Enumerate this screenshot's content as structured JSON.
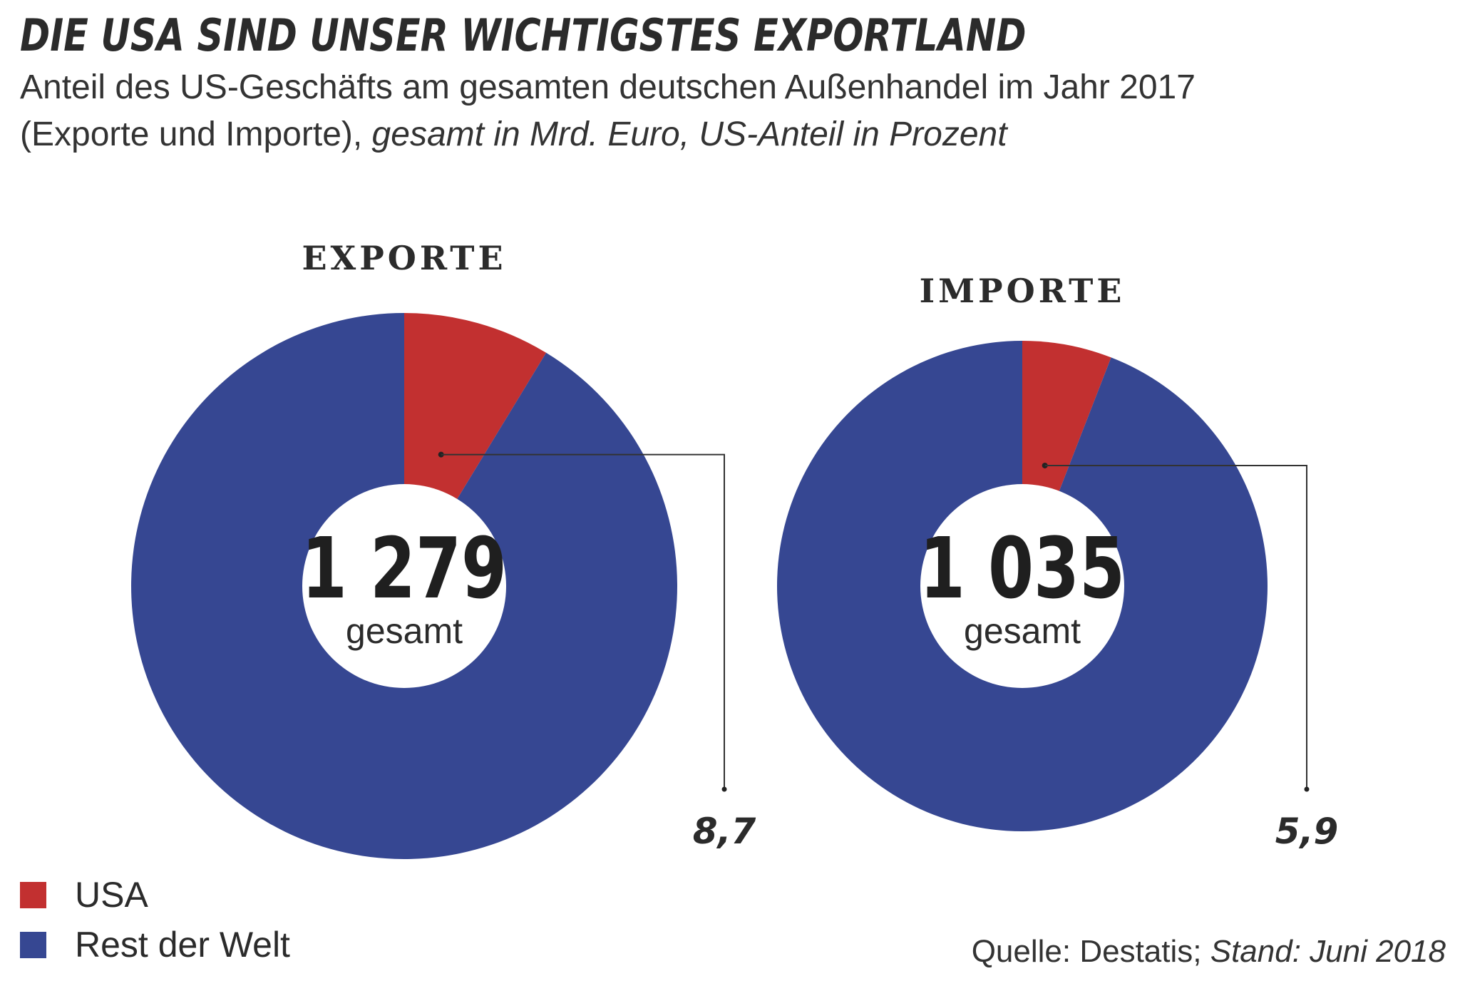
{
  "header": {
    "title": "DIE USA SIND UNSER WICHTIGSTES EXPORTLAND",
    "subtitle_line1": "Anteil des US-Geschäfts am gesamten deutschen Außenhandel im Jahr 2017",
    "subtitle_line2_a": "(Exporte und Importe), ",
    "subtitle_line2_b": "gesamt in Mrd. Euro, US-Anteil in Prozent"
  },
  "colors": {
    "usa": "#C23030",
    "rest": "#364792",
    "text": "#2b2b2b"
  },
  "chart_data": [
    {
      "type": "pie",
      "title": "EXPORTE",
      "total": 1279,
      "total_label": "1 279",
      "center_caption": "gesamt",
      "categories": [
        "USA",
        "Rest der Welt"
      ],
      "values": [
        8.7,
        91.3
      ],
      "value_label": "8,7"
    },
    {
      "type": "pie",
      "title": "IMPORTE",
      "total": 1035,
      "total_label": "1 035",
      "center_caption": "gesamt",
      "categories": [
        "USA",
        "Rest der Welt"
      ],
      "values": [
        5.9,
        94.1
      ],
      "value_label": "5,9"
    }
  ],
  "legend": [
    {
      "label": "USA"
    },
    {
      "label": "Rest der Welt"
    }
  ],
  "source": {
    "prefix": "Quelle: Destatis; ",
    "stand": "Stand: Juni 2018"
  }
}
